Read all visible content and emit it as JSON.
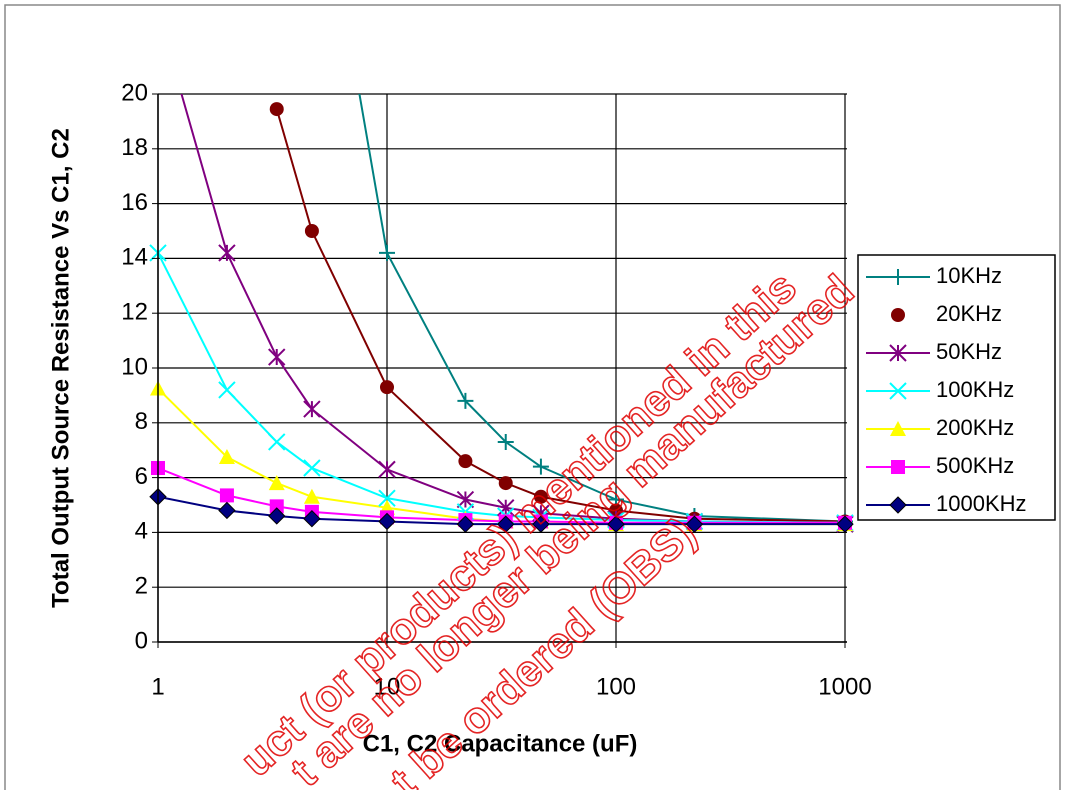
{
  "chart_data": {
    "type": "line",
    "x_label": "C1, C2 Capacitance (uF)",
    "y_label": "Total Output Source Resistance Vs C1, C2",
    "x": [
      1,
      2,
      3.3,
      4.7,
      10,
      22,
      33,
      47,
      100,
      220,
      1000
    ],
    "xlim": [
      1,
      1000
    ],
    "xticks": [
      1,
      10,
      100,
      1000
    ],
    "x_log": true,
    "ylim": [
      0,
      20
    ],
    "yticks": [
      0,
      2,
      4,
      6,
      8,
      10,
      12,
      14,
      16,
      18,
      20
    ],
    "grid": true,
    "legend": "right",
    "series": [
      {
        "name": "10KHz",
        "color": "#008080",
        "marker": "plus",
        "legend_line": true,
        "values": [
          null,
          null,
          null,
          30,
          14.2,
          8.8,
          7.3,
          6.4,
          5.2,
          4.6,
          4.4
        ]
      },
      {
        "name": "20KHz",
        "color": "#800000",
        "marker": "circle",
        "legend_line": false,
        "values": [
          null,
          null,
          19.45,
          15.0,
          9.3,
          6.6,
          5.8,
          5.3,
          4.8,
          4.5,
          4.4
        ]
      },
      {
        "name": "50KHz",
        "color": "#800080",
        "marker": "star",
        "legend_line": true,
        "values": [
          23,
          14.2,
          10.4,
          8.5,
          6.3,
          5.2,
          4.9,
          4.7,
          4.5,
          4.4,
          4.3
        ]
      },
      {
        "name": "100KHz",
        "color": "#00ffff",
        "marker": "x",
        "legend_line": true,
        "values": [
          14.2,
          9.2,
          7.3,
          6.35,
          5.25,
          4.75,
          4.6,
          4.55,
          4.45,
          4.4,
          4.35
        ]
      },
      {
        "name": "200KHz",
        "color": "#ffff00",
        "marker": "triangle",
        "legend_line": true,
        "values": [
          9.25,
          6.75,
          5.8,
          5.3,
          4.9,
          4.5,
          4.4,
          4.4,
          4.3,
          4.3,
          4.3
        ]
      },
      {
        "name": "500KHz",
        "color": "#ff00ff",
        "marker": "square",
        "legend_line": true,
        "values": [
          6.35,
          5.35,
          4.95,
          4.75,
          4.55,
          4.45,
          4.4,
          4.4,
          4.35,
          4.35,
          4.35
        ]
      },
      {
        "name": "1000KHz",
        "color": "#000080",
        "marker": "diamond",
        "legend_line": true,
        "values": [
          5.3,
          4.8,
          4.6,
          4.5,
          4.4,
          4.3,
          4.3,
          4.3,
          4.3,
          4.3,
          4.3
        ]
      }
    ],
    "watermark": [
      "uct (or products) mentioned in this",
      "t are no longer being manufactured",
      "t be ordered (OBS)"
    ]
  }
}
